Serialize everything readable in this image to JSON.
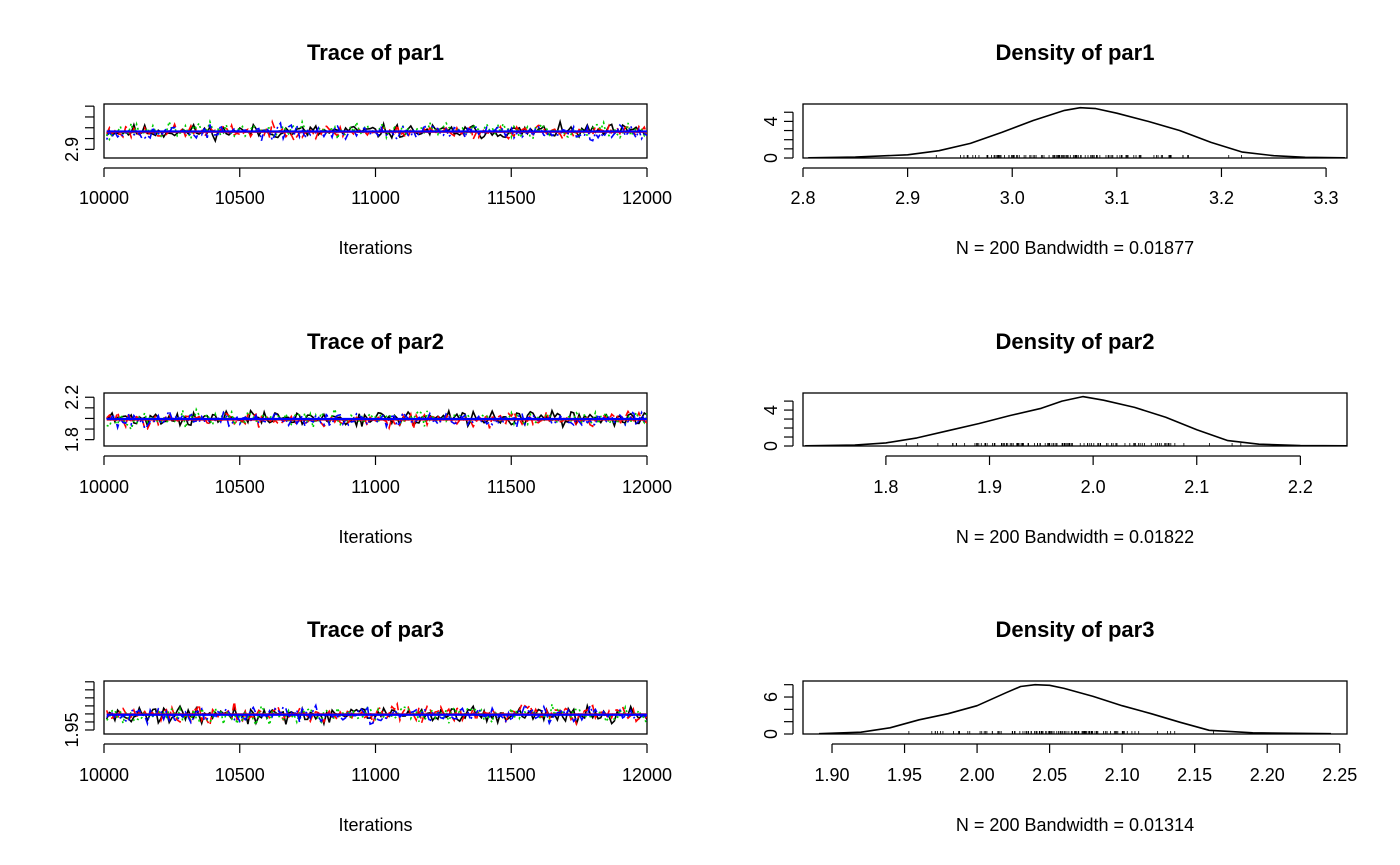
{
  "chart_data": [
    {
      "type": "line",
      "title": "Trace of par1",
      "xlabel": "Iterations",
      "ylabel": "",
      "xlim": [
        10000,
        12000
      ],
      "ylim": [
        2.82,
        3.32
      ],
      "x_ticks": [
        10000,
        10500,
        11000,
        11500,
        12000
      ],
      "y_tick_labels": [
        {
          "value": 2.9,
          "label": "2.9"
        }
      ],
      "y_minor_ticks": [
        3.0,
        3.1,
        3.2,
        3.3
      ],
      "series": [
        {
          "color": "#000000",
          "dash": "solid",
          "center": 3.065,
          "spread": 0.095,
          "seed": 11
        },
        {
          "color": "#ff0000",
          "dash": "dashed",
          "center": 3.065,
          "spread": 0.095,
          "seed": 23
        },
        {
          "color": "#00cd00",
          "dash": "dotted",
          "center": 3.075,
          "spread": 0.11,
          "seed": 37
        },
        {
          "color": "#0000ff",
          "dash": "dotdash",
          "center": 3.06,
          "spread": 0.1,
          "seed": 53
        }
      ],
      "mean_lines": [
        {
          "color": "#ff0000",
          "value": 3.063
        },
        {
          "color": "#0000ff",
          "value": 3.066
        }
      ]
    },
    {
      "type": "area",
      "title": "Density of par1",
      "xlabel": "N = 200   Bandwidth = 0.01877",
      "ylabel": "",
      "xlim": [
        2.8,
        3.32
      ],
      "ylim": [
        0,
        5.9
      ],
      "x_ticks": [
        2.8,
        2.9,
        3.0,
        3.1,
        3.2,
        3.3
      ],
      "x_tick_labels": [
        "2.8",
        "2.9",
        "3.0",
        "3.1",
        "3.2",
        "3.3"
      ],
      "y_tick_labels": [
        {
          "value": 0,
          "label": "0"
        },
        {
          "value": 4,
          "label": "4"
        }
      ],
      "y_minor_ticks": [
        1,
        2,
        3,
        5
      ],
      "density": {
        "x": [
          2.805,
          2.85,
          2.9,
          2.93,
          2.96,
          2.99,
          3.02,
          3.05,
          3.065,
          3.08,
          3.1,
          3.13,
          3.16,
          3.19,
          3.22,
          3.25,
          3.28,
          3.318
        ],
        "y": [
          0.02,
          0.1,
          0.35,
          0.8,
          1.6,
          2.8,
          4.1,
          5.2,
          5.5,
          5.4,
          4.9,
          4.0,
          3.0,
          1.7,
          0.65,
          0.25,
          0.08,
          0.02
        ]
      },
      "rug_range": [
        2.89,
        3.25
      ]
    },
    {
      "type": "line",
      "title": "Trace of par2",
      "xlabel": "Iterations",
      "ylabel": "",
      "xlim": [
        10000,
        12000
      ],
      "ylim": [
        1.74,
        2.24
      ],
      "x_ticks": [
        10000,
        10500,
        11000,
        11500,
        12000
      ],
      "y_tick_labels": [
        {
          "value": 1.8,
          "label": "1.8"
        },
        {
          "value": 2.2,
          "label": "2.2"
        }
      ],
      "y_minor_ticks": [
        1.9,
        2.0,
        2.1
      ],
      "series": [
        {
          "color": "#000000",
          "dash": "solid",
          "center": 2.0,
          "spread": 0.1,
          "seed": 71
        },
        {
          "color": "#ff0000",
          "dash": "dashed",
          "center": 1.99,
          "spread": 0.1,
          "seed": 83
        },
        {
          "color": "#00cd00",
          "dash": "dotted",
          "center": 1.995,
          "spread": 0.1,
          "seed": 97
        },
        {
          "color": "#0000ff",
          "dash": "dotdash",
          "center": 1.99,
          "spread": 0.1,
          "seed": 101
        }
      ],
      "mean_lines": [
        {
          "color": "#ff0000",
          "value": 1.99
        },
        {
          "color": "#0000ff",
          "value": 1.995
        }
      ]
    },
    {
      "type": "area",
      "title": "Density of par2",
      "xlabel": "N = 200   Bandwidth = 0.01822",
      "ylabel": "",
      "xlim": [
        1.72,
        2.245
      ],
      "ylim": [
        0,
        5.9
      ],
      "x_ticks": [
        1.8,
        1.9,
        2.0,
        2.1,
        2.2
      ],
      "x_tick_labels": [
        "1.8",
        "1.9",
        "2.0",
        "2.1",
        "2.2"
      ],
      "y_tick_labels": [
        {
          "value": 0,
          "label": "0"
        },
        {
          "value": 4,
          "label": "4"
        }
      ],
      "y_minor_ticks": [
        1,
        2,
        3,
        5
      ],
      "density": {
        "x": [
          1.722,
          1.77,
          1.8,
          1.83,
          1.86,
          1.89,
          1.92,
          1.95,
          1.97,
          1.99,
          2.01,
          2.04,
          2.07,
          2.1,
          2.13,
          2.16,
          2.2,
          2.245
        ],
        "y": [
          0.02,
          0.1,
          0.35,
          0.9,
          1.7,
          2.5,
          3.4,
          4.2,
          5.0,
          5.5,
          5.1,
          4.3,
          3.2,
          1.8,
          0.6,
          0.2,
          0.05,
          0.02
        ]
      },
      "rug_range": [
        1.78,
        2.16
      ]
    },
    {
      "type": "line",
      "title": "Trace of par3",
      "xlabel": "Iterations",
      "ylabel": "",
      "xlim": [
        10000,
        12000
      ],
      "ylim": [
        1.925,
        2.255
      ],
      "x_ticks": [
        10000,
        10500,
        11000,
        11500,
        12000
      ],
      "y_tick_labels": [
        {
          "value": 1.95,
          "label": "1.95"
        }
      ],
      "y_minor_ticks": [
        2.0,
        2.05,
        2.1,
        2.15,
        2.2,
        2.25
      ],
      "series": [
        {
          "color": "#000000",
          "dash": "solid",
          "center": 2.045,
          "spread": 0.075,
          "seed": 131
        },
        {
          "color": "#ff0000",
          "dash": "dashed",
          "center": 2.05,
          "spread": 0.08,
          "seed": 149
        },
        {
          "color": "#00cd00",
          "dash": "dotted",
          "center": 2.045,
          "spread": 0.075,
          "seed": 163
        },
        {
          "color": "#0000ff",
          "dash": "dotdash",
          "center": 2.045,
          "spread": 0.075,
          "seed": 179
        }
      ],
      "mean_lines": [
        {
          "color": "#ff0000",
          "value": 2.047
        },
        {
          "color": "#0000ff",
          "value": 2.045
        }
      ]
    },
    {
      "type": "area",
      "title": "Density of par3",
      "xlabel": "N = 200   Bandwidth = 0.01314",
      "ylabel": "",
      "xlim": [
        1.88,
        2.255
      ],
      "ylim": [
        0,
        8.6
      ],
      "x_ticks": [
        1.9,
        1.95,
        2.0,
        2.05,
        2.1,
        2.15,
        2.2,
        2.25
      ],
      "x_tick_labels": [
        "1.90",
        "1.95",
        "2.00",
        "2.05",
        "2.10",
        "2.15",
        "2.20",
        "2.25"
      ],
      "y_tick_labels": [
        {
          "value": 0,
          "label": "0"
        },
        {
          "value": 6,
          "label": "6"
        }
      ],
      "y_minor_ticks": [
        2,
        4,
        8
      ],
      "density": {
        "x": [
          1.891,
          1.92,
          1.94,
          1.96,
          1.98,
          2.0,
          2.02,
          2.03,
          2.04,
          2.05,
          2.06,
          2.08,
          2.1,
          2.12,
          2.14,
          2.16,
          2.19,
          2.244
        ],
        "y": [
          0.05,
          0.3,
          1.0,
          2.3,
          3.3,
          4.6,
          6.7,
          7.7,
          8.0,
          7.9,
          7.4,
          6.1,
          4.6,
          3.3,
          1.9,
          0.6,
          0.2,
          0.05
        ]
      },
      "rug_range": [
        1.93,
        2.18
      ]
    }
  ]
}
